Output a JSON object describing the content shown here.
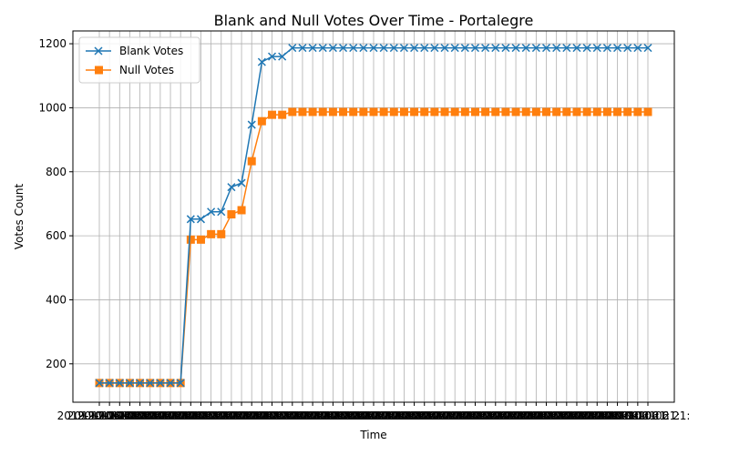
{
  "chart_data": {
    "type": "line",
    "title": "Blank and Null Votes Over Time - Portalegre",
    "xlabel": "Time",
    "ylabel": "Votes Count",
    "ylim": [
      80,
      1240
    ],
    "yticks": [
      200,
      400,
      600,
      800,
      1000,
      1200
    ],
    "grid": true,
    "legend_position": "top-left",
    "x_tick_label_fragment": "2019-10-06 21:",
    "x_tick_count": 55,
    "series": [
      {
        "name": "Blank Votes",
        "color": "#1f77b4",
        "marker": "x",
        "values": [
          140,
          140,
          140,
          140,
          140,
          140,
          140,
          140,
          140,
          652,
          652,
          675,
          675,
          752,
          765,
          947,
          1143,
          1160,
          1160,
          1187,
          1187,
          1187,
          1187,
          1187,
          1187,
          1187,
          1187,
          1187,
          1187,
          1187,
          1187,
          1187,
          1187,
          1187,
          1187,
          1187,
          1187,
          1187,
          1187,
          1187,
          1187,
          1187,
          1187,
          1187,
          1187,
          1187,
          1187,
          1187,
          1187,
          1187,
          1187,
          1187,
          1187,
          1187,
          1187
        ]
      },
      {
        "name": "Null Votes",
        "color": "#ff7f0e",
        "marker": "s",
        "values": [
          140,
          140,
          140,
          140,
          140,
          140,
          140,
          140,
          140,
          588,
          588,
          605,
          605,
          667,
          680,
          833,
          958,
          978,
          978,
          987,
          987,
          987,
          987,
          987,
          987,
          987,
          987,
          987,
          987,
          987,
          987,
          987,
          987,
          987,
          987,
          987,
          987,
          987,
          987,
          987,
          987,
          987,
          987,
          987,
          987,
          987,
          987,
          987,
          987,
          987,
          987,
          987,
          987,
          987,
          987
        ]
      }
    ]
  }
}
